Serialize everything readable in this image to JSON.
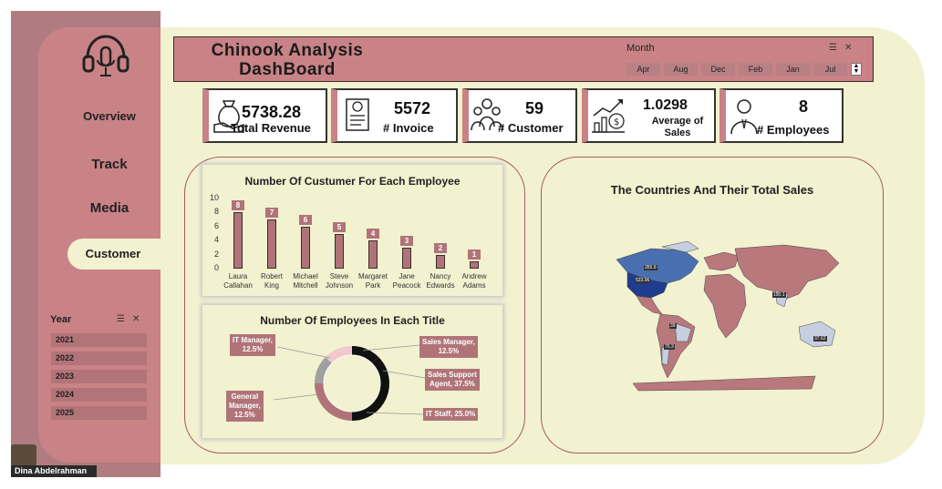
{
  "sidebar": {
    "nav": [
      "Overview",
      "Track",
      "Media",
      "Customer"
    ],
    "year_title": "Year",
    "years": [
      "2021",
      "2022",
      "2023",
      "2024",
      "2025"
    ],
    "user_name": "Dina Abdelrahman"
  },
  "header": {
    "title_line1": "Chinook  Analysis",
    "title_line2": "DashBoard",
    "month_label": "Month",
    "months": [
      "Apr",
      "Aug",
      "Dec",
      "Feb",
      "Jan",
      "Jul"
    ]
  },
  "kpis": {
    "revenue": {
      "value": "5738.28",
      "label": "Total Revenue"
    },
    "invoice": {
      "value": "5572",
      "label": "# Invoice"
    },
    "customer": {
      "value": "59",
      "label": "# Customer"
    },
    "sales": {
      "value": "1.0298",
      "label_line1": "Average of",
      "label_line2": "Sales"
    },
    "employees": {
      "value": "8",
      "label": "# Employees"
    }
  },
  "chart_data": [
    {
      "type": "bar",
      "title": "Number Of Custumer For Each  Employee",
      "categories": [
        [
          "Laura",
          "Callahan"
        ],
        [
          "Robert",
          "King"
        ],
        [
          "Michael",
          "Mitchell"
        ],
        [
          "Steve",
          "Johnson"
        ],
        [
          "Margaret",
          "Park"
        ],
        [
          "Jane",
          "Peacock"
        ],
        [
          "Nancy",
          "Edwards"
        ],
        [
          "Andrew",
          "Adams"
        ]
      ],
      "values": [
        8,
        7,
        6,
        5,
        4,
        3,
        2,
        1
      ],
      "yticks": [
        "10",
        "8",
        "6",
        "4",
        "2",
        "0"
      ],
      "ylim": [
        0,
        10
      ]
    },
    {
      "type": "pie",
      "title": "Number Of Employees In Each Title",
      "slices": [
        {
          "label_line1": "IT Manager,",
          "label_line2": "12.5%",
          "value": 12.5
        },
        {
          "label_line1": "Sales Manager,",
          "label_line2": "12.5%",
          "value": 12.5
        },
        {
          "label_line1": "Sales Support",
          "label_line2": "Agent, 37.5%",
          "value": 37.5
        },
        {
          "label_line1": "General",
          "label_line2": "Manager,",
          "label_line3": "12.5%",
          "value": 12.5
        },
        {
          "label_line1": "IT Staff, 25.0%",
          "value": 25.0
        }
      ]
    }
  ],
  "map": {
    "title": "The Countries And Their Total Sales",
    "labels": [
      "355.9",
      "523.06",
      "190.1",
      "39",
      "75.3",
      "37.62"
    ]
  },
  "colors": {
    "accent": "#c98286",
    "cream": "#f2f1d0",
    "bar": "#b07478",
    "map_land": "#b9787c",
    "map_us": "#1f3d8c"
  }
}
